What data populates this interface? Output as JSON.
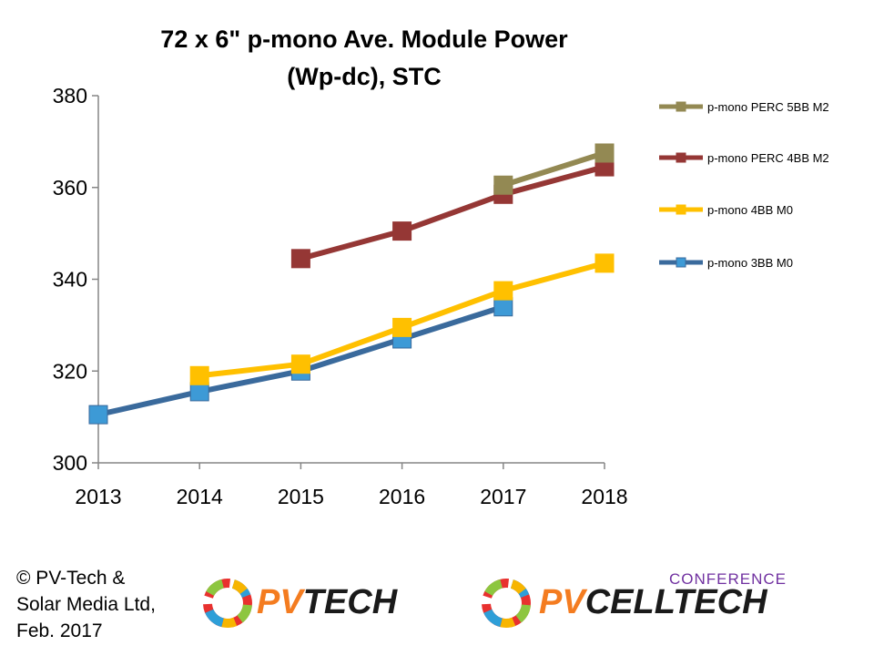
{
  "chart_data": {
    "type": "line",
    "title_line1": "72 x 6\" p-mono  Ave. Module Power",
    "title_line2": "(Wp-dc), STC",
    "x": [
      "2013",
      "2014",
      "2015",
      "2016",
      "2017",
      "2018"
    ],
    "ylim": [
      300,
      380
    ],
    "yticks": [
      "300",
      "320",
      "340",
      "360",
      "380"
    ],
    "grid": false,
    "legend_position": "right",
    "series": [
      {
        "name": "p-mono PERC 5BB M2",
        "color": "#938953",
        "values": [
          null,
          null,
          null,
          null,
          360.5,
          367.5
        ]
      },
      {
        "name": "p-mono PERC 4BB M2",
        "color": "#953735",
        "values": [
          null,
          null,
          344.5,
          350.5,
          358.5,
          364.5
        ]
      },
      {
        "name": "p-mono 4BB M0",
        "color": "#ffc000",
        "values": [
          null,
          319,
          321.5,
          329.5,
          337.5,
          343.5
        ]
      },
      {
        "name": "p-mono 3BB M0",
        "color": "#3a6a9c",
        "marker_color": "#3d9ad6",
        "values": [
          310.5,
          315.5,
          320,
          327,
          334,
          null
        ]
      }
    ]
  },
  "footer": {
    "copyright_line1": "© PV-Tech &",
    "copyright_line2": "Solar Media Ltd,",
    "copyright_line3": "Feb. 2017",
    "logo1_part_a": "PV",
    "logo1_part_b": "TECH",
    "logo2_part_a": "PV",
    "logo2_part_b": "CELLTECH",
    "logo2_superscript": "CONFERENCE",
    "brand_orange": "#f47c20",
    "brand_purple": "#7030a0"
  }
}
